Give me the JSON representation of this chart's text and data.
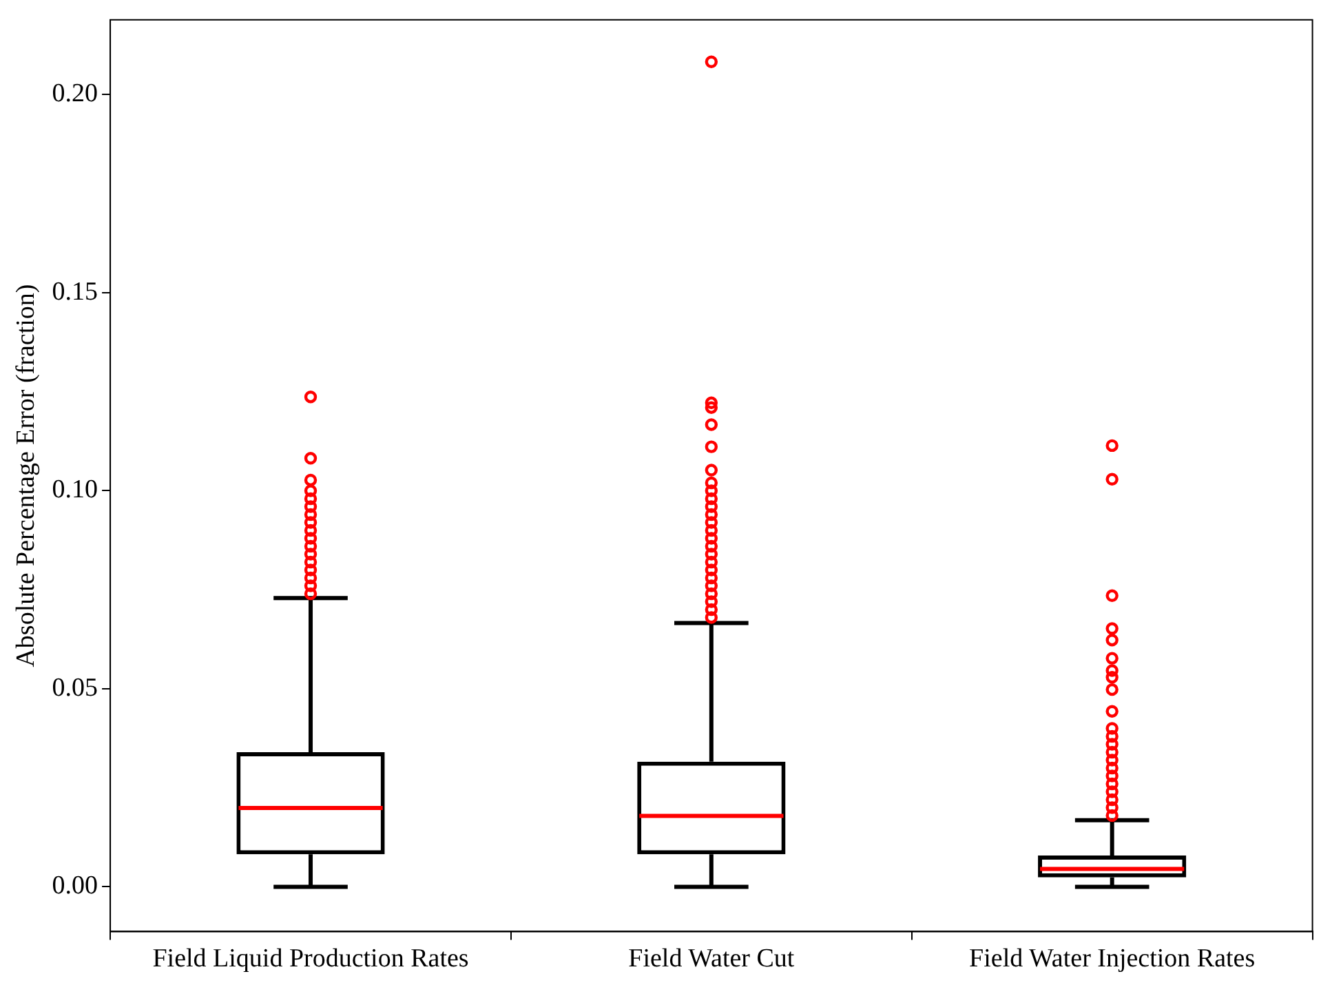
{
  "chart_data": {
    "type": "box",
    "ylabel": "Absolute Percentage Error (fraction)",
    "categories": [
      "Field Liquid Production Rates",
      "Field Water Cut",
      "Field Water Injection Rates"
    ],
    "ylim": [
      -0.0113,
      0.2189
    ],
    "yticks": [
      {
        "value": 0,
        "label": "0.00"
      },
      {
        "value": 0.05,
        "label": "0.05"
      },
      {
        "value": 0.1,
        "label": "0.10"
      },
      {
        "value": 0.15,
        "label": "0.15"
      },
      {
        "value": 0.2,
        "label": "0.20"
      }
    ],
    "grid": false,
    "legend": false,
    "marker": "circle",
    "series": [
      {
        "color": "#000000",
        "boxes": [
          {
            "low": 0,
            "q1": 0.0082,
            "median": 0.0199,
            "q3": 0.034,
            "high": 0.0729,
            "outliers": [
              0.074,
              0.076,
              0.078,
              0.08,
              0.082,
              0.084,
              0.086,
              0.088,
              0.09,
              0.092,
              0.094,
              0.096,
              0.098,
              0.1,
              0.1027,
              0.1082,
              0.1237
            ]
          },
          {
            "low": 0,
            "q1": 0.0082,
            "median": 0.0179,
            "q3": 0.0316,
            "high": 0.0666,
            "outliers": [
              0.068,
              0.07,
              0.072,
              0.074,
              0.076,
              0.078,
              0.08,
              0.082,
              0.084,
              0.086,
              0.088,
              0.09,
              0.092,
              0.094,
              0.096,
              0.098,
              0.1,
              0.102,
              0.1052,
              0.1111,
              0.1167,
              0.121,
              0.1222,
              0.2083
            ]
          },
          {
            "low": 0,
            "q1": 0.0024,
            "median": 0.0045,
            "q3": 0.0079,
            "high": 0.0168,
            "outliers": [
              0.018,
              0.02,
              0.022,
              0.024,
              0.026,
              0.028,
              0.03,
              0.032,
              0.034,
              0.036,
              0.038,
              0.04,
              0.0443,
              0.0498,
              0.0529,
              0.0546,
              0.0577,
              0.0623,
              0.0652,
              0.0735,
              0.1029,
              0.1114
            ]
          }
        ]
      }
    ]
  }
}
